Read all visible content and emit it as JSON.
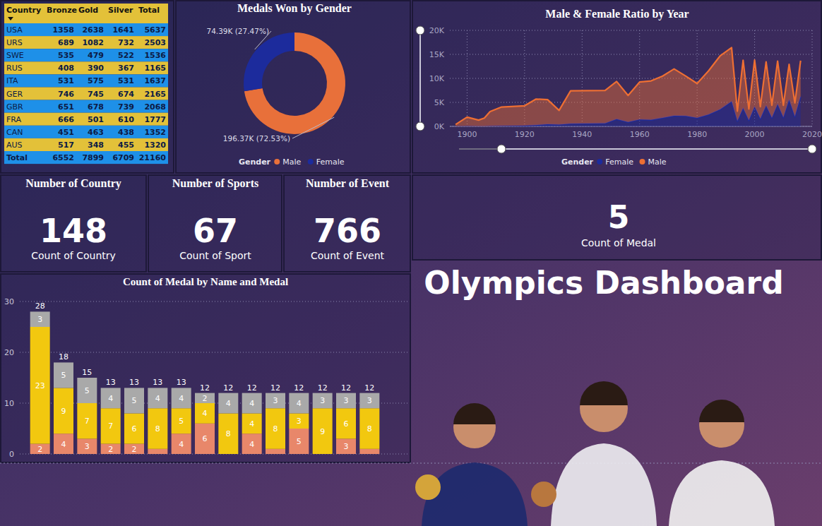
{
  "title": "Olympics Dashboard",
  "table": {
    "columns": [
      "Country",
      "Bronze",
      "Gold",
      "Silver",
      "Total"
    ],
    "rows": [
      [
        "USA",
        1358,
        2638,
        1641,
        5637
      ],
      [
        "URS",
        689,
        1082,
        732,
        2503
      ],
      [
        "SWE",
        535,
        479,
        522,
        1536
      ],
      [
        "RUS",
        408,
        390,
        367,
        1165
      ],
      [
        "ITA",
        531,
        575,
        531,
        1637
      ],
      [
        "GER",
        746,
        745,
        674,
        2165
      ],
      [
        "GBR",
        651,
        678,
        739,
        2068
      ],
      [
        "FRA",
        666,
        501,
        610,
        1777
      ],
      [
        "CAN",
        451,
        463,
        438,
        1352
      ],
      [
        "AUS",
        517,
        348,
        455,
        1320
      ],
      [
        "Total",
        6552,
        7899,
        6709,
        21160
      ]
    ]
  },
  "cards": [
    {
      "title": "Number of Country",
      "value": 148,
      "label": "Count of Country"
    },
    {
      "title": "Number of Sports",
      "value": 67,
      "label": "Count of Sport"
    },
    {
      "title": "Number of Event",
      "value": 766,
      "label": "Count of Event"
    },
    {
      "value": 5,
      "label": "Count of Medal"
    }
  ],
  "chart_data": [
    {
      "type": "donut",
      "title": "Medals Won by Gender",
      "categories": [
        "Male",
        "Female"
      ],
      "values": [
        196370,
        74390
      ],
      "value_labels": [
        "196.37K (72.53%)",
        "74.39K (27.47%)"
      ],
      "colors": [
        "#e8703a",
        "#1c2b9c"
      ],
      "data_labels": true,
      "legend": "bottom",
      "legend_title": "Gender"
    },
    {
      "type": "area",
      "title": "Male & Female Ratio by Year",
      "x": [
        1896,
        1900,
        1904,
        1906,
        1908,
        1912,
        1920,
        1924,
        1928,
        1932,
        1936,
        1948,
        1952,
        1956,
        1960,
        1964,
        1968,
        1972,
        1976,
        1980,
        1984,
        1988,
        1992,
        1994,
        1996,
        1998,
        2000,
        2002,
        2004,
        2006,
        2008,
        2010,
        2012,
        2014,
        2016
      ],
      "series": [
        {
          "name": "Female",
          "color": "#1c2b9c",
          "values": [
            0,
            33,
            16,
            11,
            47,
            87,
            134,
            261,
            437,
            369,
            549,
            629,
            1497,
            893,
            1435,
            1348,
            1777,
            2193,
            2172,
            1756,
            2447,
            3543,
            5174,
            1101,
            3779,
            1254,
            4069,
            1582,
            4306,
            1757,
            4609,
            1847,
            5500,
            2023,
            6223
          ]
        },
        {
          "name": "Male",
          "color": "#ee6f33",
          "values": [
            380,
            1903,
            1285,
            1722,
            3054,
            3953,
            4158,
            5432,
            5137,
            2952,
            6852,
            6851,
            7861,
            5541,
            7800,
            8132,
            8702,
            9766,
            8330,
            7181,
            9141,
            11133,
            11239,
            2059,
            10001,
            2351,
            9752,
            2527,
            9137,
            2625,
            8993,
            2555,
            7420,
            2868,
            7465
          ]
        }
      ],
      "stacked": true,
      "xlim": [
        1894,
        2020
      ],
      "xticks": [
        1900,
        1920,
        1940,
        1960,
        1980,
        2000,
        2020
      ],
      "ylim": [
        0,
        20000
      ],
      "yticks": [
        {
          "value": 0,
          "label": "0K"
        },
        {
          "value": 5000,
          "label": "5K"
        },
        {
          "value": 10000,
          "label": "10K"
        },
        {
          "value": 15000,
          "label": "15K"
        },
        {
          "value": 20000,
          "label": "20K"
        }
      ],
      "grid": true,
      "legend": "bottom",
      "legend_title": "Gender"
    },
    {
      "type": "bar",
      "title": "Count of Medal by Name and Medal",
      "categories": [
        null,
        null,
        null,
        null,
        null,
        null,
        null,
        null,
        null,
        null,
        null,
        null,
        null,
        null,
        null
      ],
      "series": [
        {
          "color": "#e8876a",
          "values": [
            2,
            4,
            3,
            2,
            2,
            1,
            4,
            6,
            0,
            4,
            1,
            5,
            0,
            3,
            1
          ]
        },
        {
          "color": "#f2c80f",
          "values": [
            23,
            9,
            7,
            7,
            6,
            8,
            5,
            4,
            8,
            4,
            8,
            3,
            9,
            6,
            8
          ]
        },
        {
          "color": "#a9a9a9",
          "values": [
            3,
            5,
            5,
            4,
            5,
            4,
            4,
            2,
            4,
            4,
            3,
            4,
            3,
            3,
            3
          ]
        }
      ],
      "totals": [
        28,
        18,
        15,
        13,
        13,
        13,
        13,
        12,
        12,
        12,
        12,
        12,
        12,
        12,
        12
      ],
      "stacked": true,
      "data_labels": true,
      "ylim": [
        0,
        30
      ],
      "yticks": [
        0,
        10,
        20,
        30
      ],
      "grid": true,
      "tick_labels": "y"
    }
  ]
}
